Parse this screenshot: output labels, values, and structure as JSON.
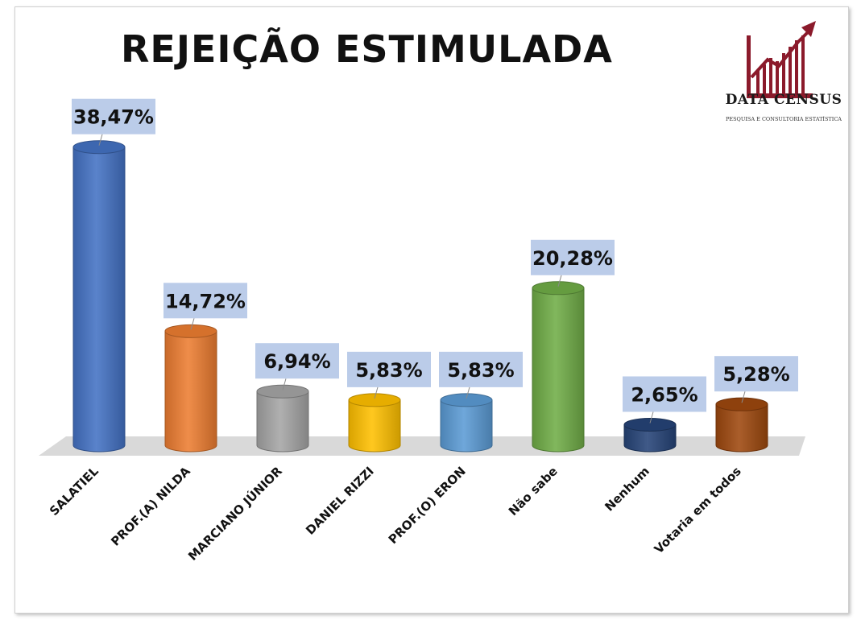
{
  "brand": {
    "name": "DATA CENSUS",
    "tagline": "PESQUISA E CONSULTORIA ESTATÍSTICA"
  },
  "chart_data": {
    "type": "bar",
    "title": "REJEIÇÃO ESTIMULADA",
    "categories": [
      "SALATIEL",
      "PROF.(A) NILDA",
      "MARCIANO JÚNIOR",
      "DANIEL RIZZI",
      "PROF.(O) ERON",
      "Não sabe",
      "Nenhum",
      "Votaria em todos"
    ],
    "values": [
      38.47,
      14.72,
      6.94,
      5.83,
      5.83,
      20.28,
      2.65,
      5.28
    ],
    "labels": [
      "38,47%",
      "14,72%",
      "6,94%",
      "5,83%",
      "5,83%",
      "20,28%",
      "2,65%",
      "5,28%"
    ],
    "colors": [
      "#4472c4",
      "#ed7d31",
      "#a5a5a5",
      "#ffc000",
      "#5b9bd5",
      "#70ad47",
      "#264478",
      "#9e480e"
    ],
    "ylim": [
      0,
      40
    ],
    "grid": false,
    "legend": "none"
  }
}
